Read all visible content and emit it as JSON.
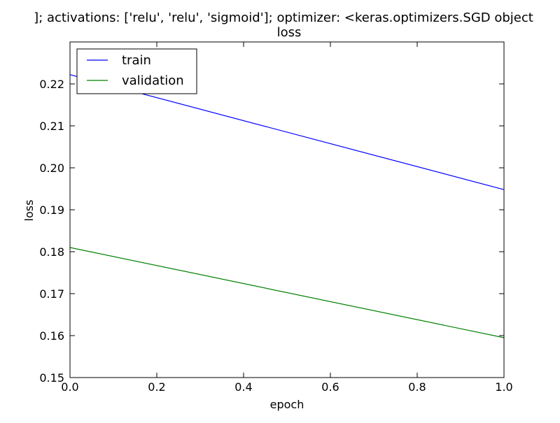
{
  "chart_data": {
    "type": "line",
    "title_line1": "]; activations: ['relu', 'relu', 'sigmoid']; optimizer: <keras.optimizers.SGD object",
    "title": "loss",
    "xlabel": "epoch",
    "ylabel": "loss",
    "xlim": [
      0.0,
      1.0
    ],
    "ylim": [
      0.15,
      0.23
    ],
    "xticks": [
      "0.0",
      "0.2",
      "0.4",
      "0.6",
      "0.8",
      "1.0"
    ],
    "yticks": [
      "0.15",
      "0.16",
      "0.17",
      "0.18",
      "0.19",
      "0.20",
      "0.21",
      "0.22"
    ],
    "grid": false,
    "legend_position": "upper-left",
    "series": [
      {
        "name": "train",
        "color": "#0000ff",
        "x": [
          0.0,
          1.0
        ],
        "y": [
          0.2222,
          0.1948
        ]
      },
      {
        "name": "validation",
        "color": "#008000",
        "x": [
          0.0,
          1.0
        ],
        "y": [
          0.181,
          0.1595
        ]
      }
    ]
  }
}
